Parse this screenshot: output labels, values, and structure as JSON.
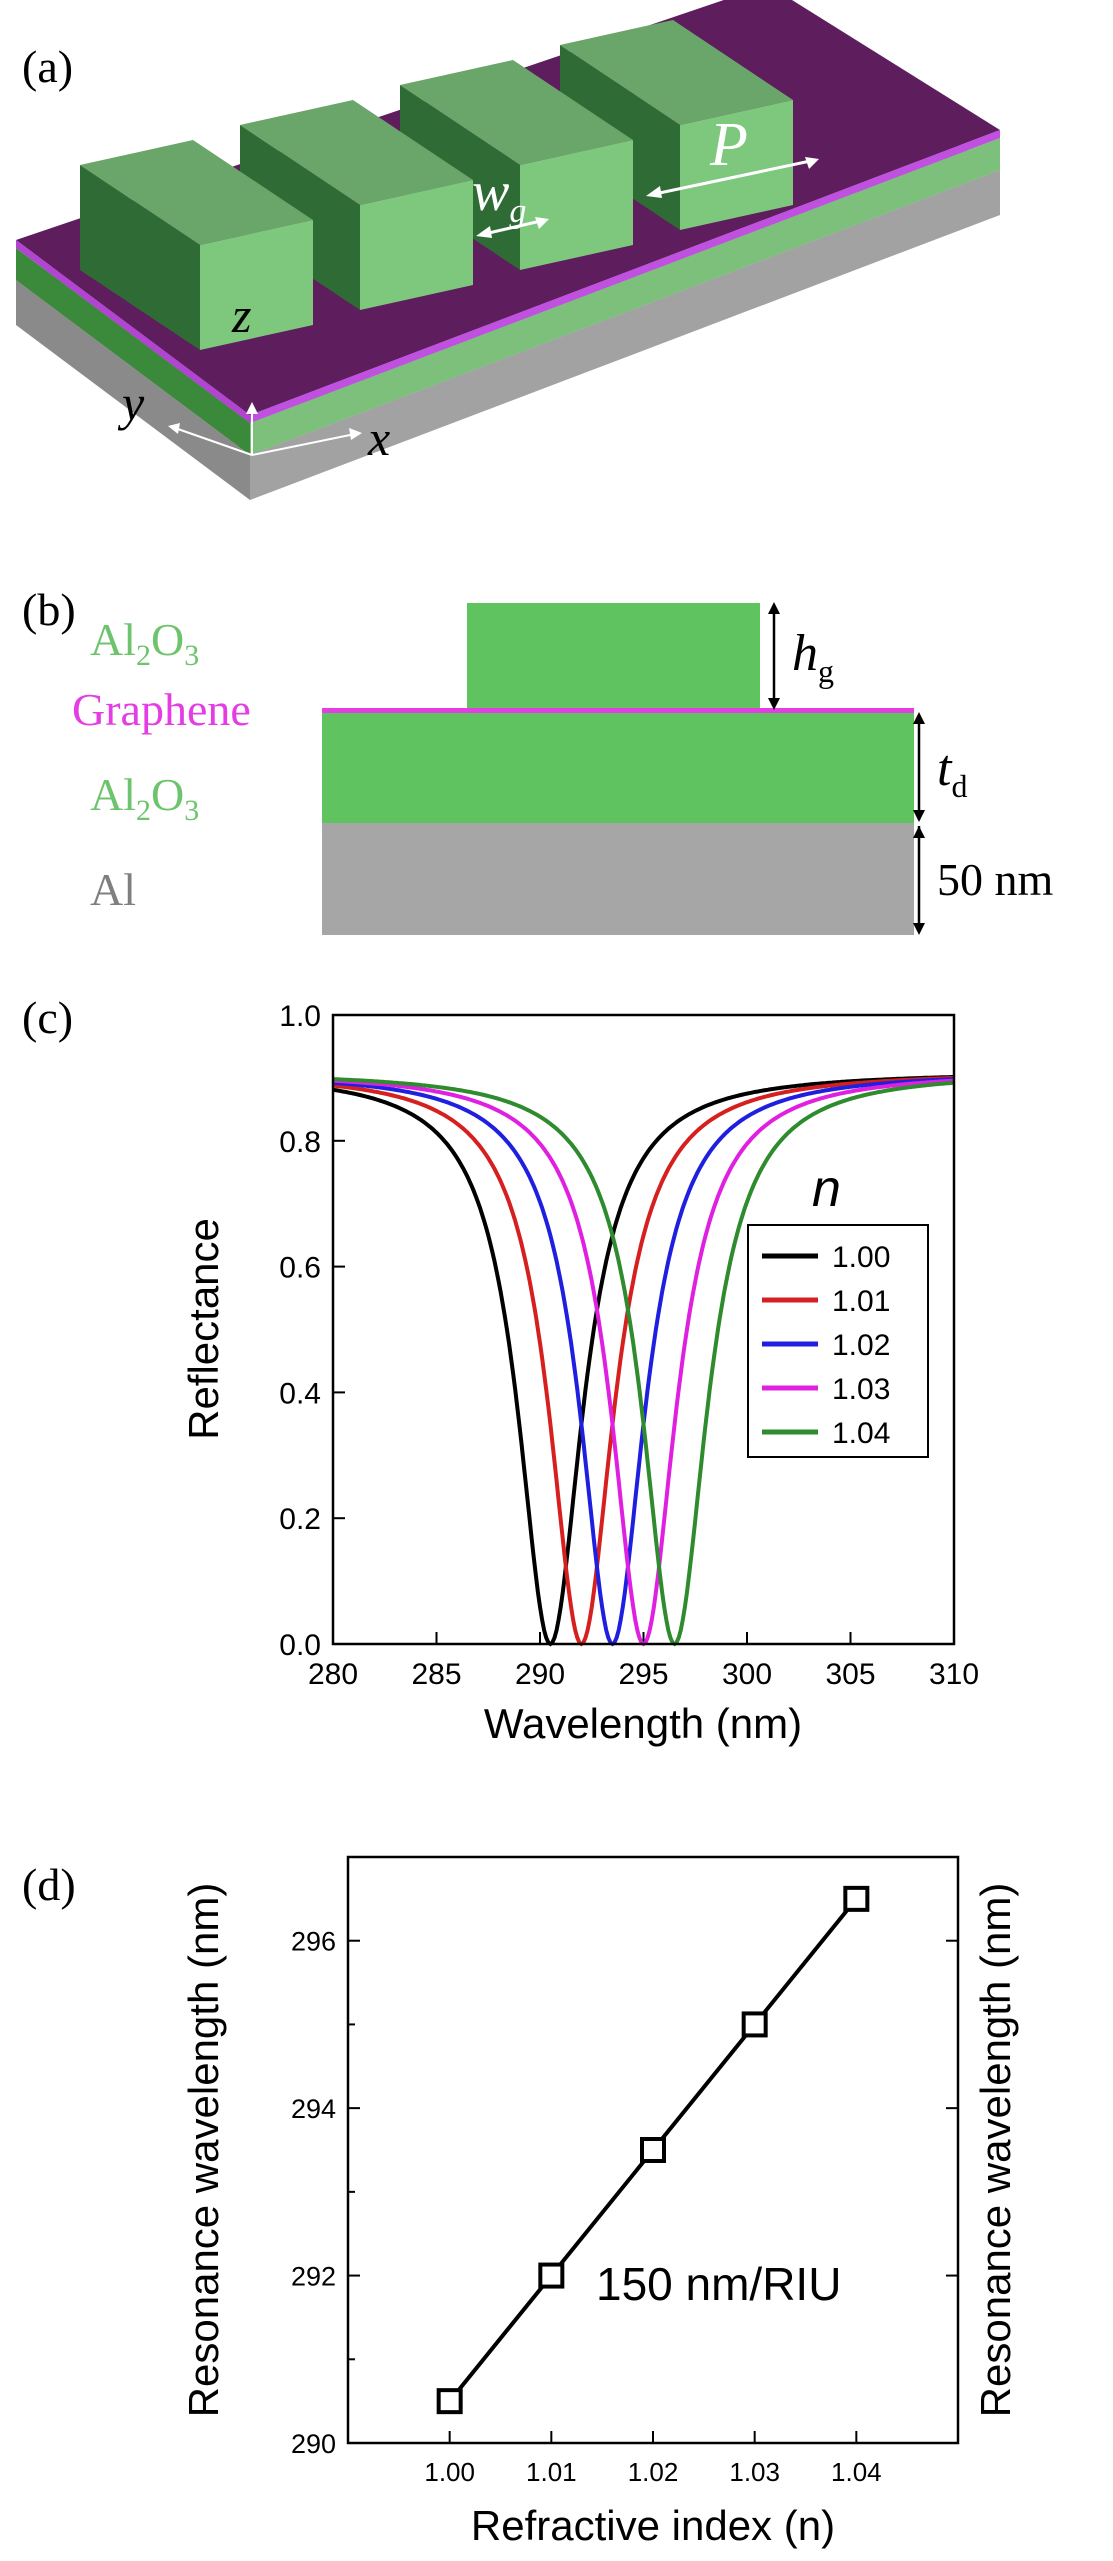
{
  "figure": {
    "panels": [
      {
        "id": "a",
        "label": "(a)"
      },
      {
        "id": "b",
        "label": "(b)"
      },
      {
        "id": "c",
        "label": "(c)"
      },
      {
        "id": "d",
        "label": "(d)"
      }
    ]
  },
  "panel_a": {
    "wg_label": "w",
    "wg_sub": "g",
    "p_label": "P",
    "axis_z": "z",
    "axis_y": "y",
    "axis_x": "x",
    "colors": {
      "ridge_top": "#6aa56a",
      "ridge_side": "#2f6b35",
      "graphene": "#6f1f6f",
      "substrate": "#909090"
    }
  },
  "panel_b": {
    "layer_top": {
      "main": "Al",
      "sub1": "2",
      "mid": "O",
      "sub2": "3"
    },
    "graphene": "Graphene",
    "layer_mid": {
      "main": "Al",
      "sub1": "2",
      "mid": "O",
      "sub2": "3"
    },
    "layer_al": "Al",
    "hg": {
      "main": "h",
      "sub": "g"
    },
    "td": {
      "main": "t",
      "sub": "d"
    },
    "thickness_al": "50 nm",
    "colors": {
      "green": "#5fc35f",
      "graphene": "#e33de3",
      "al": "#a6a6a6",
      "label_green": "#6ec46e",
      "label_gray": "#7f7f7f"
    }
  },
  "chart_data": [
    {
      "type": "line",
      "panel": "c",
      "xlabel": "Wavelength (nm)",
      "ylabel": "Reflectance",
      "xlim": [
        280,
        310
      ],
      "ylim": [
        0.0,
        1.0
      ],
      "xticks": [
        "280",
        "285",
        "290",
        "295",
        "300",
        "305",
        "310"
      ],
      "yticks": [
        "0.0",
        "0.2",
        "0.4",
        "0.6",
        "0.8",
        "1.0"
      ],
      "legend_title": "n",
      "legend_position": "right",
      "curve_model": {
        "baseline": 0.91,
        "min_value": 0.0,
        "half_width_nm": 1.9
      },
      "series": [
        {
          "name": "1.00",
          "color": "#000000",
          "resonance": 290.5
        },
        {
          "name": "1.01",
          "color": "#d62020",
          "resonance": 292.0
        },
        {
          "name": "1.02",
          "color": "#1f1fe0",
          "resonance": 293.5
        },
        {
          "name": "1.03",
          "color": "#e020e0",
          "resonance": 295.0
        },
        {
          "name": "1.04",
          "color": "#2e8b2e",
          "resonance": 296.5
        }
      ]
    },
    {
      "type": "line",
      "panel": "d",
      "xlabel": "Refractive index (n)",
      "ylabel": "Resonance wavelength (nm)",
      "ylabel_right": "Resonance wavelength (nm)",
      "xlim": [
        0.99,
        1.05
      ],
      "ylim": [
        290,
        297
      ],
      "xticks": [
        "1.00",
        "1.01",
        "1.02",
        "1.03",
        "1.04"
      ],
      "yticks": [
        "290",
        "292",
        "294",
        "296"
      ],
      "annotation": "150 nm/RIU",
      "series": [
        {
          "x": [
            1.0,
            1.01,
            1.02,
            1.03,
            1.04
          ],
          "y": [
            290.5,
            292.0,
            293.5,
            295.0,
            296.5
          ],
          "marker": "square",
          "color": "#000000"
        }
      ]
    }
  ]
}
